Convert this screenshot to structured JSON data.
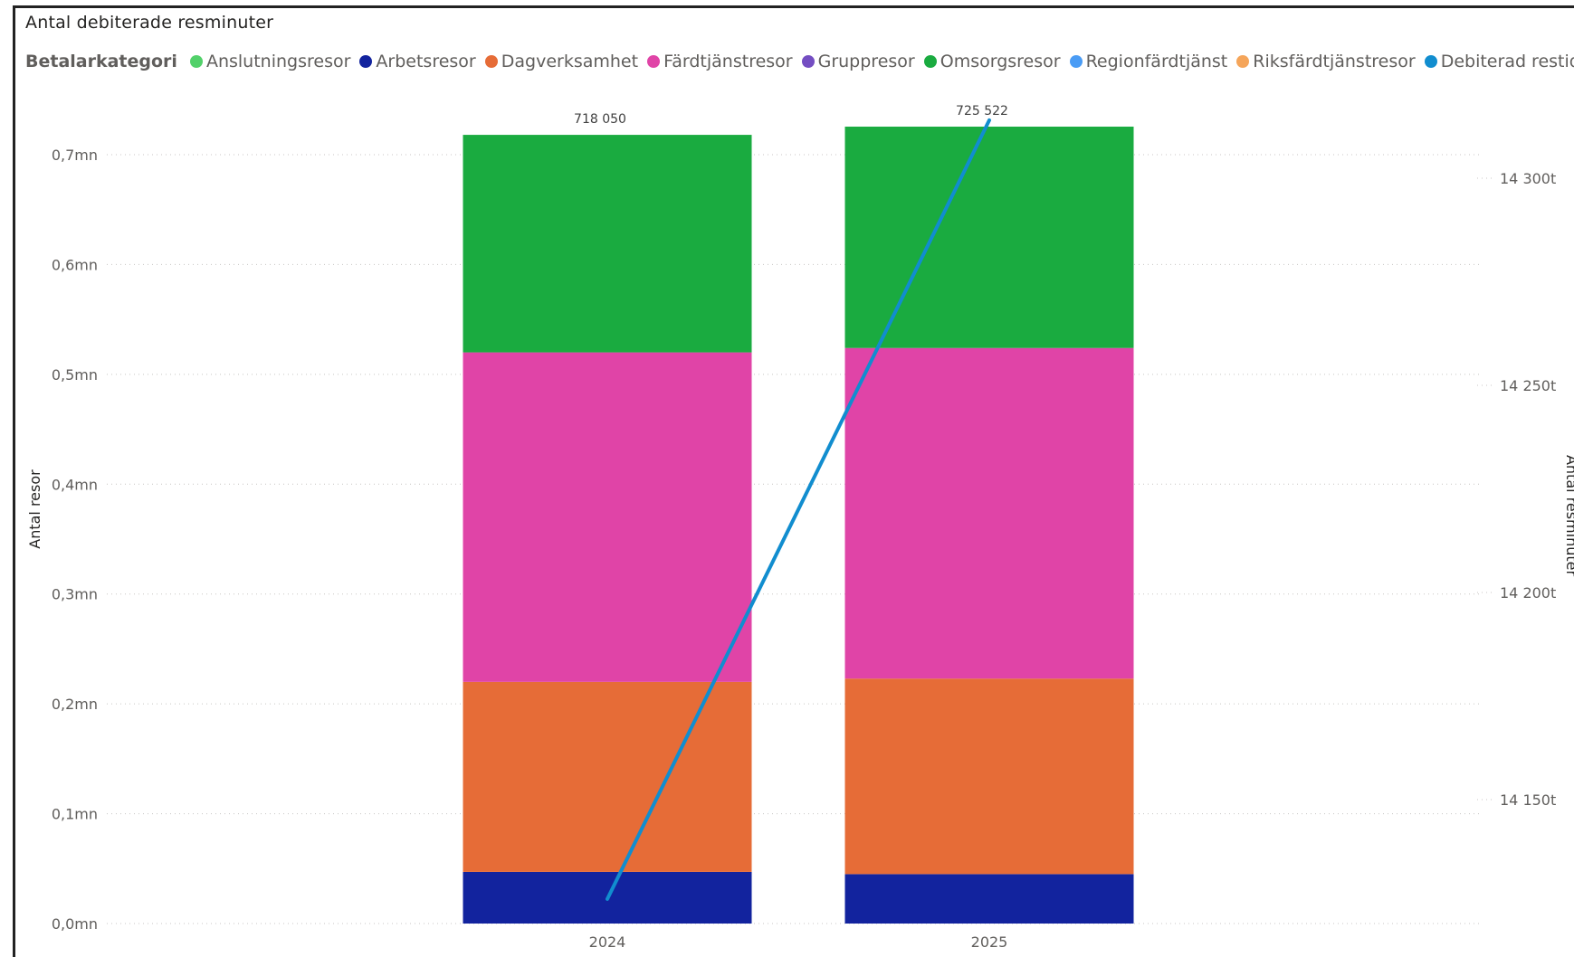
{
  "title": "Antal debiterade resminuter",
  "legend": {
    "title": "Betalarkategori",
    "items": [
      {
        "label": "Anslutningsresor",
        "color": "#52d16a"
      },
      {
        "label": "Arbetsresor",
        "color": "#12239e"
      },
      {
        "label": "Dagverksamhet",
        "color": "#e66c37"
      },
      {
        "label": "Färdtjänstresor",
        "color": "#e044a7"
      },
      {
        "label": "Gruppresor",
        "color": "#744ec2"
      },
      {
        "label": "Omsorgsresor",
        "color": "#1aab40"
      },
      {
        "label": "Regionfärdtjänst",
        "color": "#4a9cf5"
      },
      {
        "label": "Riksfärdtjänstresor",
        "color": "#f5a55a"
      },
      {
        "label": "Debiterad restid",
        "color": "#118dcf"
      }
    ]
  },
  "chart_data": {
    "type": "bar",
    "stacked": true,
    "categories": [
      "2024",
      "2025"
    ],
    "series": [
      {
        "name": "Arbetsresor",
        "color": "#12239e",
        "values": [
          47000,
          45000
        ]
      },
      {
        "name": "Dagverksamhet",
        "color": "#e66c37",
        "values": [
          173000,
          178000
        ]
      },
      {
        "name": "Färdtjänstresor",
        "color": "#e044a7",
        "values": [
          300000,
          301000
        ]
      },
      {
        "name": "Omsorgsresor",
        "color": "#1aab40",
        "values": [
          198050,
          201522
        ]
      }
    ],
    "totals": [
      718050,
      725522
    ],
    "total_labels": [
      "718 050",
      "725 522"
    ],
    "line_series": {
      "name": "Debiterad restid",
      "color": "#118dcf",
      "values": [
        14126000,
        14314000
      ]
    },
    "ylabel": "Antal resor",
    "ylabel_right": "Antal resminuter",
    "ylim": [
      0,
      700000
    ],
    "yticks": [
      {
        "value": 0,
        "label": "0,0mn"
      },
      {
        "value": 100000,
        "label": "0,1mn"
      },
      {
        "value": 200000,
        "label": "0,2mn"
      },
      {
        "value": 300000,
        "label": "0,3mn"
      },
      {
        "value": 400000,
        "label": "0,4mn"
      },
      {
        "value": 500000,
        "label": "0,5mn"
      },
      {
        "value": 600000,
        "label": "0,6mn"
      },
      {
        "value": 700000,
        "label": "0,7mn"
      }
    ],
    "yticks_right": [
      {
        "value": 14150000,
        "label": "14 150t"
      },
      {
        "value": 14200000,
        "label": "14 200t"
      },
      {
        "value": 14250000,
        "label": "14 250t"
      },
      {
        "value": 14300000,
        "label": "14 300t"
      }
    ],
    "grid": true
  }
}
